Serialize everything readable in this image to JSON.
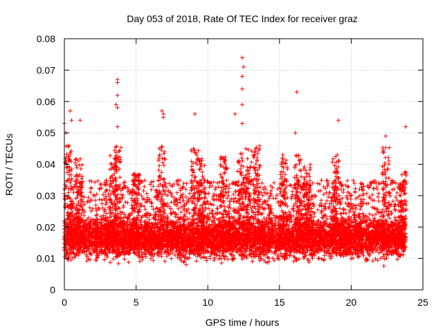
{
  "chart_data": {
    "type": "scatter",
    "title": "Day 053 of 2018, Rate Of TEC Index for receiver graz",
    "xlabel": "GPS time / hours",
    "ylabel": "ROTI / TECUs",
    "xlim": [
      0,
      25
    ],
    "ylim": [
      0,
      0.08
    ],
    "x_ticks": [
      0,
      5,
      10,
      15,
      20,
      25
    ],
    "x_tick_labels": [
      "0",
      "5",
      "10",
      "15",
      "20",
      "25"
    ],
    "y_ticks": [
      0,
      0.01,
      0.02,
      0.03,
      0.04,
      0.05,
      0.06,
      0.07,
      0.08
    ],
    "y_tick_labels": [
      "0",
      "0.01",
      "0.02",
      "0.03",
      "0.04",
      "0.05",
      "0.06",
      "0.07",
      "0.08"
    ],
    "grid": true,
    "marker": "plus",
    "color": "#ff0000",
    "peaks": [
      {
        "x": 0.0,
        "y": 0.053
      },
      {
        "x": 0.1,
        "y": 0.05
      },
      {
        "x": 0.4,
        "y": 0.057
      },
      {
        "x": 0.5,
        "y": 0.054
      },
      {
        "x": 1.1,
        "y": 0.054
      },
      {
        "x": 3.7,
        "y": 0.067
      },
      {
        "x": 3.7,
        "y": 0.066
      },
      {
        "x": 3.7,
        "y": 0.062
      },
      {
        "x": 3.6,
        "y": 0.059
      },
      {
        "x": 3.7,
        "y": 0.058
      },
      {
        "x": 3.7,
        "y": 0.052
      },
      {
        "x": 6.8,
        "y": 0.057
      },
      {
        "x": 6.9,
        "y": 0.056
      },
      {
        "x": 6.9,
        "y": 0.055
      },
      {
        "x": 9.1,
        "y": 0.056
      },
      {
        "x": 11.9,
        "y": 0.056
      },
      {
        "x": 12.4,
        "y": 0.074
      },
      {
        "x": 12.5,
        "y": 0.071
      },
      {
        "x": 12.4,
        "y": 0.068
      },
      {
        "x": 12.4,
        "y": 0.064
      },
      {
        "x": 12.4,
        "y": 0.059
      },
      {
        "x": 12.4,
        "y": 0.053
      },
      {
        "x": 16.2,
        "y": 0.063
      },
      {
        "x": 16.1,
        "y": 0.05
      },
      {
        "x": 19.1,
        "y": 0.054
      },
      {
        "x": 22.4,
        "y": 0.049
      },
      {
        "x": 23.8,
        "y": 0.052
      }
    ],
    "bulk": {
      "description_of_values": "dense scatter between roughly 0.005 and 0.035 ROTI over 0–24 h",
      "y_min": 0.004,
      "y_typical_low": 0.008,
      "y_typical_high": 0.025,
      "y_spike_max": 0.046,
      "x_start": 0.0,
      "x_end": 23.8
    },
    "bursts": [
      {
        "x": 0.3,
        "y_top": 0.046
      },
      {
        "x": 1.0,
        "y_top": 0.042
      },
      {
        "x": 3.4,
        "y_top": 0.043
      },
      {
        "x": 3.7,
        "y_top": 0.047
      },
      {
        "x": 5.0,
        "y_top": 0.037
      },
      {
        "x": 6.8,
        "y_top": 0.046
      },
      {
        "x": 9.1,
        "y_top": 0.045
      },
      {
        "x": 9.6,
        "y_top": 0.042
      },
      {
        "x": 11.1,
        "y_top": 0.043
      },
      {
        "x": 12.3,
        "y_top": 0.045
      },
      {
        "x": 12.8,
        "y_top": 0.046
      },
      {
        "x": 13.4,
        "y_top": 0.046
      },
      {
        "x": 15.3,
        "y_top": 0.043
      },
      {
        "x": 16.3,
        "y_top": 0.043
      },
      {
        "x": 16.9,
        "y_top": 0.04
      },
      {
        "x": 18.9,
        "y_top": 0.043
      },
      {
        "x": 22.4,
        "y_top": 0.046
      },
      {
        "x": 23.6,
        "y_top": 0.038
      }
    ]
  }
}
